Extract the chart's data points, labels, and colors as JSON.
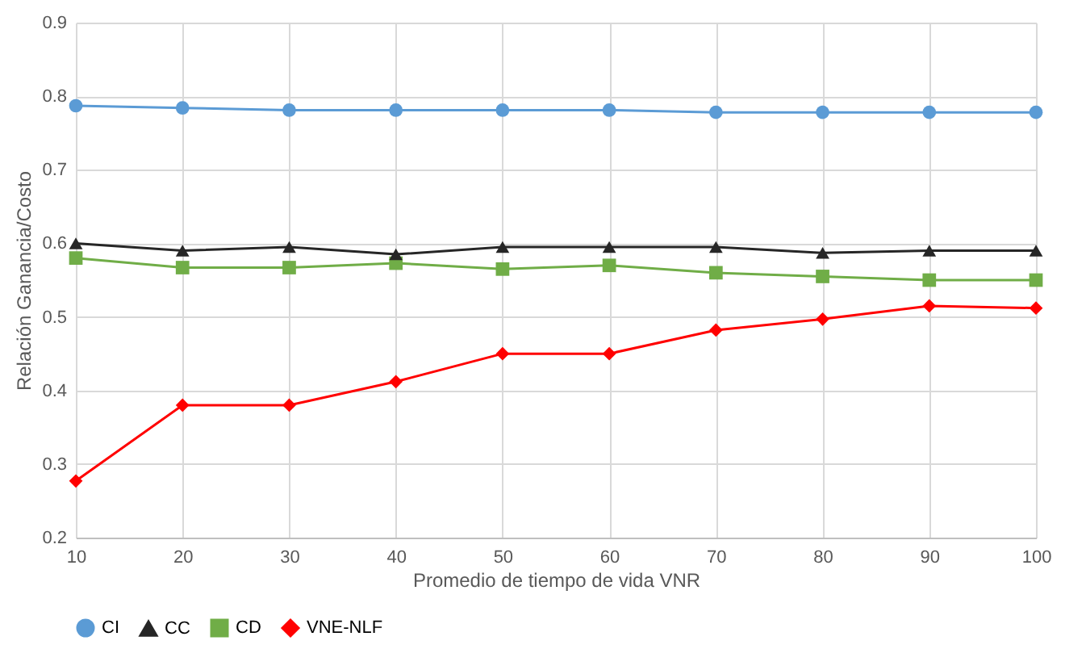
{
  "chart_data": {
    "type": "line",
    "xlabel": "Promedio de tiempo de vida VNR",
    "ylabel": "Relación Ganancia/Costo",
    "x": [
      10,
      20,
      30,
      40,
      50,
      60,
      70,
      80,
      90,
      100
    ],
    "series": [
      {
        "name": "CI",
        "color": "#5b9bd5",
        "marker": "circle",
        "values": [
          0.787,
          0.784,
          0.781,
          0.781,
          0.781,
          0.781,
          0.778,
          0.778,
          0.778,
          0.778
        ]
      },
      {
        "name": "CC",
        "color": "#262626",
        "marker": "triangle",
        "values": [
          0.6,
          0.59,
          0.595,
          0.585,
          0.595,
          0.595,
          0.595,
          0.587,
          0.59,
          0.59
        ]
      },
      {
        "name": "CD",
        "color": "#70ad47",
        "marker": "square",
        "values": [
          0.58,
          0.567,
          0.567,
          0.573,
          0.565,
          0.57,
          0.56,
          0.555,
          0.55,
          0.55
        ]
      },
      {
        "name": "VNE-NLF",
        "color": "#ff0000",
        "marker": "diamond",
        "values": [
          0.277,
          0.38,
          0.38,
          0.412,
          0.45,
          0.45,
          0.482,
          0.497,
          0.515,
          0.512
        ]
      }
    ],
    "xlim": [
      10,
      100
    ],
    "xticks": [
      10,
      20,
      30,
      40,
      50,
      60,
      70,
      80,
      90,
      100
    ],
    "ylim": [
      0.2,
      0.9
    ],
    "yticks": [
      0.2,
      0.3,
      0.4,
      0.5,
      0.6,
      0.7,
      0.8,
      0.9
    ],
    "grid": true,
    "legend": "bottom",
    "line_style": "solid"
  }
}
